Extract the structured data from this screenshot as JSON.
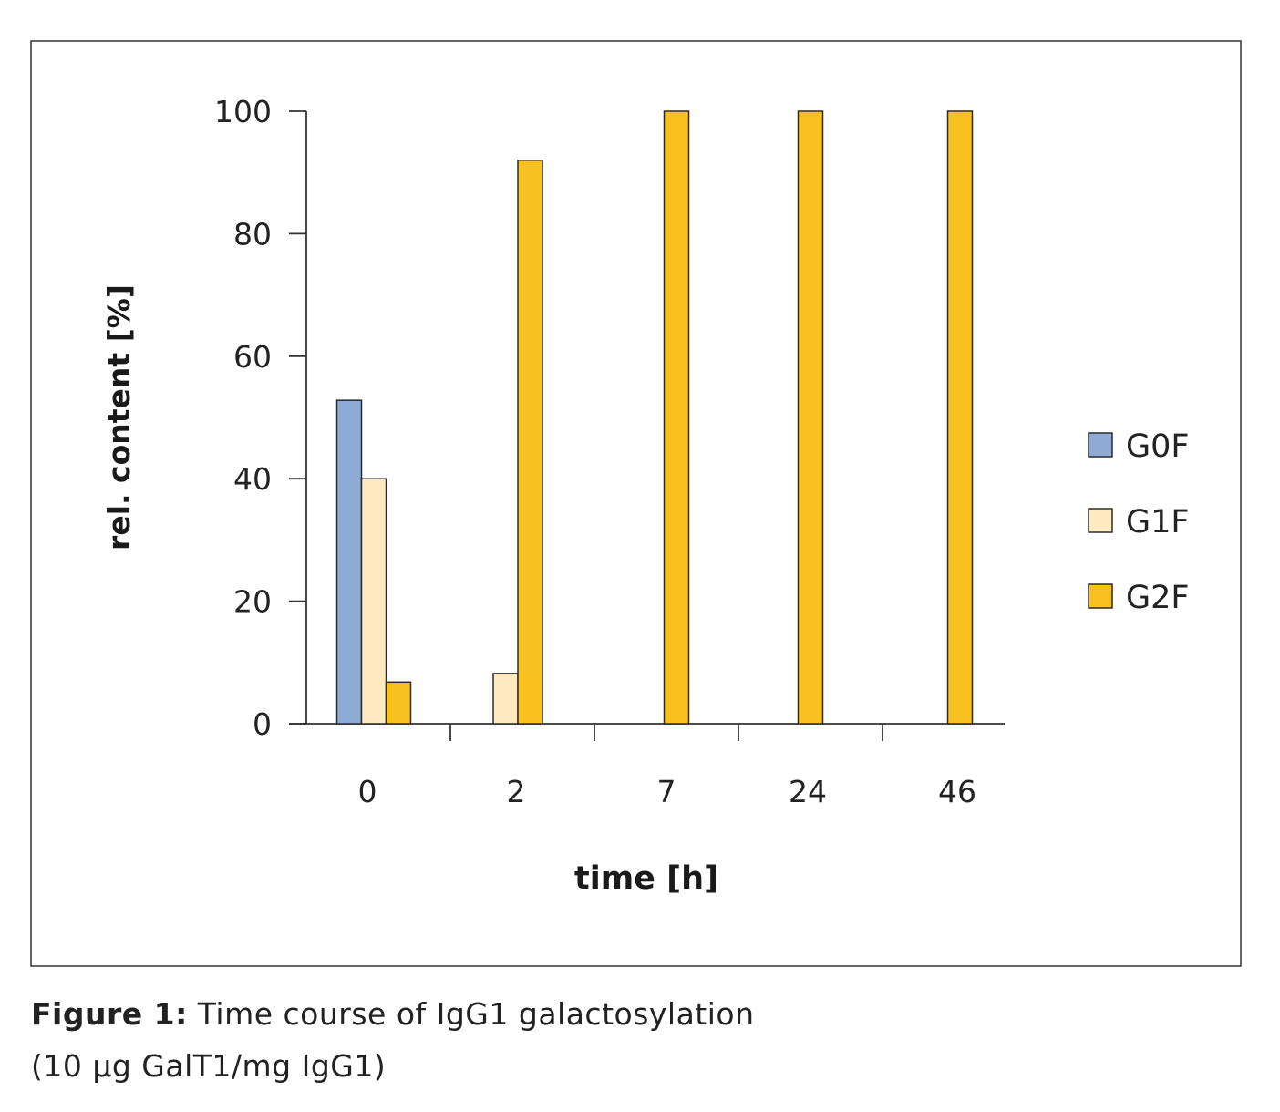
{
  "chart_data": {
    "type": "bar",
    "title": "",
    "xlabel": "time [h]",
    "ylabel": "rel. content [%]",
    "ylim": [
      0,
      100
    ],
    "yticks": [
      0,
      20,
      40,
      60,
      80,
      100
    ],
    "categories": [
      "0",
      "2",
      "7",
      "24",
      "46"
    ],
    "series": [
      {
        "name": "G0F",
        "color": "#8eabd6",
        "values": [
          52.8,
          0,
          0,
          0,
          0
        ]
      },
      {
        "name": "G1F",
        "color": "#fdeac0",
        "values": [
          40,
          8.2,
          0,
          0,
          0
        ]
      },
      {
        "name": "G2F",
        "color": "#f9c120",
        "values": [
          6.8,
          92,
          100,
          100,
          100
        ]
      }
    ],
    "legend_position": "right",
    "grid": false
  },
  "caption": {
    "label": "Figure 1:",
    "line1": "Time course of IgG1 galactosylation",
    "line2": "(10 µg GalT1/mg IgG1)"
  }
}
